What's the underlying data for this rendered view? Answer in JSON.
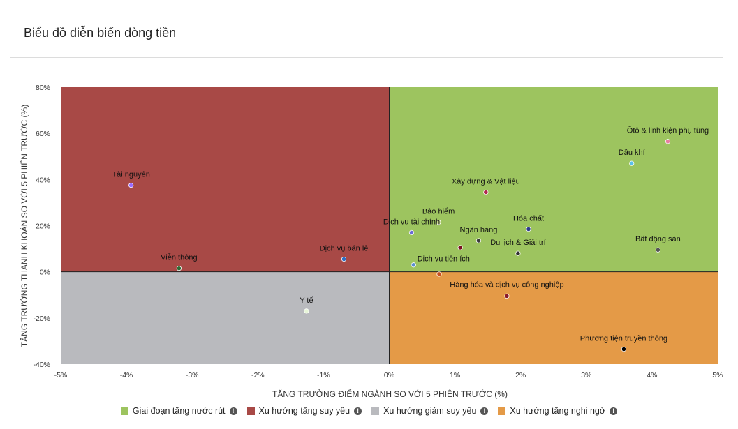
{
  "header": {
    "title": "Biểu đồ diễn biến dòng tiền"
  },
  "colors": {
    "q1": "#9dc45f",
    "q2": "#a84946",
    "q3": "#b9babe",
    "q4": "#e49a47"
  },
  "legend": [
    {
      "label": "Giai đoạn tăng nước rút",
      "color": "#9dc45f",
      "icon": "info-icon"
    },
    {
      "label": "Xu hướng tăng suy yếu",
      "color": "#a84946",
      "icon": "info-icon"
    },
    {
      "label": "Xu hướng giảm suy yếu",
      "color": "#b9babe",
      "icon": "info-icon"
    },
    {
      "label": "Xu hướng tăng nghi ngờ",
      "color": "#e49a47",
      "icon": "info-icon"
    }
  ],
  "chart_data": {
    "type": "scatter",
    "xlabel": "TĂNG TRƯỞNG ĐIỂM NGÀNH SO VỚI 5 PHIÊN TRƯỚC (%)",
    "ylabel": "TĂNG TRƯỞNG THANH KHOẢN SO VỚI 5 PHIÊN TRƯỚC (%)",
    "xlim": [
      -5,
      5
    ],
    "ylim": [
      -40,
      80
    ],
    "x_ticks": [
      -5,
      -4,
      -3,
      -2,
      -1,
      0,
      1,
      2,
      3,
      4,
      5
    ],
    "x_tick_labels": [
      "-5%",
      "-4%",
      "-3%",
      "-2%",
      "-1%",
      "0%",
      "1%",
      "2%",
      "3%",
      "4%",
      "5%"
    ],
    "y_ticks": [
      80,
      60,
      40,
      20,
      0,
      -20,
      -40
    ],
    "y_tick_labels": [
      "80%",
      "60%",
      "40%",
      "20%",
      "0%",
      "-20%",
      "-40%"
    ],
    "points": [
      {
        "name": "Ôtô & linh kiện phụ tùng",
        "x": 4.24,
        "y": 56.5,
        "color": "#e77fa0"
      },
      {
        "name": "Dầu khí",
        "x": 3.69,
        "y": 47.0,
        "color": "#5bc0eb"
      },
      {
        "name": "Tài nguyên",
        "x": -3.93,
        "y": 37.5,
        "color": "#9b6bff"
      },
      {
        "name": "Xây dựng & Vật liệu",
        "x": 1.47,
        "y": 34.5,
        "color": "#b0294f"
      },
      {
        "name": "Bảo hiểm",
        "x": 0.75,
        "y": 21.5,
        "color": "#c7d98a"
      },
      {
        "name": "Dịch vụ tài chính",
        "x": 0.34,
        "y": 17.0,
        "color": "#6a6ad6"
      },
      {
        "name": "Hóa chất",
        "x": 2.12,
        "y": 18.5,
        "color": "#2e3a8c"
      },
      {
        "name": "Ngân hàng",
        "x": 1.36,
        "y": 13.5,
        "color": "#3a3a3a"
      },
      {
        "name": "Du lịch & Giải trí",
        "x": 1.96,
        "y": 8.0,
        "color": "#2e2e2e"
      },
      {
        "name": "Bất động sản",
        "x": 4.09,
        "y": 9.5,
        "color": "#555555"
      },
      {
        "name": "Dịch vụ bán lẻ",
        "x": -0.69,
        "y": 5.5,
        "color": "#2f6fc4"
      },
      {
        "name": "Viễn thông",
        "x": -3.2,
        "y": 1.5,
        "color": "#2f6b34"
      },
      {
        "name": "Dịch vụ tiện ích",
        "x": 0.37,
        "y": 3.0,
        "color": "#5b8fcf"
      },
      {
        "name": "",
        "x": 0.76,
        "y": -1.0,
        "color": "#c8501f"
      },
      {
        "name": "",
        "x": 1.08,
        "y": 10.5,
        "color": "#7a1020"
      },
      {
        "name": "Hàng hóa và dịch vụ công nghiệp",
        "x": 1.79,
        "y": -10.5,
        "color": "#8a1a2a"
      },
      {
        "name": "Y tế",
        "x": -1.26,
        "y": -17.0,
        "color": "#e7f5d8"
      },
      {
        "name": "Phương tiện truyền thông",
        "x": 3.57,
        "y": -33.5,
        "color": "#000000"
      }
    ]
  }
}
